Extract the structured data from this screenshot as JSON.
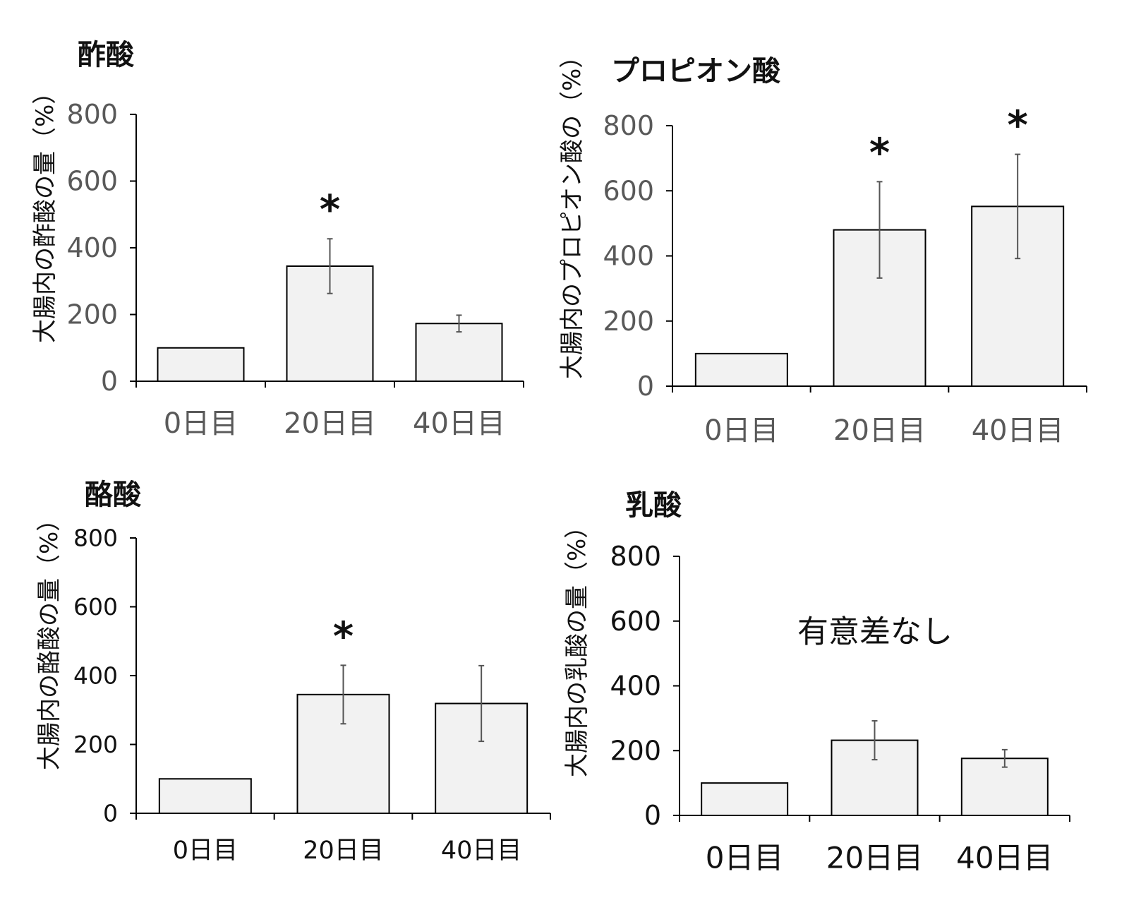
{
  "chart_data": [
    {
      "type": "bar",
      "title": "酢酸",
      "ylabel": "大腸内の酢酸の量（%）",
      "xlabel": "",
      "categories": [
        "0日目",
        "20日目",
        "40日目"
      ],
      "values": [
        100,
        345,
        173
      ],
      "error": [
        0,
        82,
        25
      ],
      "significance": [
        "",
        "*",
        ""
      ],
      "yticks": [
        "0",
        "200",
        "400",
        "600",
        "800"
      ],
      "ylim": [
        0,
        800
      ],
      "note": "",
      "tick_color": "#595959",
      "bar_color": "#f2f2f2"
    },
    {
      "type": "bar",
      "title": "プロピオン酸",
      "ylabel": "大腸内のプロピオン酸の（%）",
      "xlabel": "",
      "categories": [
        "0日目",
        "20日目",
        "40日目"
      ],
      "values": [
        100,
        480,
        552
      ],
      "error": [
        0,
        148,
        160
      ],
      "significance": [
        "",
        "*",
        "*"
      ],
      "yticks": [
        "0",
        "200",
        "400",
        "600",
        "800"
      ],
      "ylim": [
        0,
        800
      ],
      "note": "",
      "tick_color": "#595959",
      "bar_color": "#f2f2f2"
    },
    {
      "type": "bar",
      "title": "酪酸",
      "ylabel": "大腸内の酪酸の量（%）",
      "xlabel": "",
      "categories": [
        "0日目",
        "20日目",
        "40日目"
      ],
      "values": [
        100,
        345,
        319
      ],
      "error": [
        0,
        85,
        110
      ],
      "significance": [
        "",
        "*",
        ""
      ],
      "yticks": [
        "0",
        "200",
        "400",
        "600",
        "800"
      ],
      "ylim": [
        0,
        800
      ],
      "note": "",
      "tick_color": "#111111",
      "bar_color": "#f2f2f2"
    },
    {
      "type": "bar",
      "title": "乳酸",
      "ylabel": "大腸内の乳酸の量（%）",
      "xlabel": "",
      "categories": [
        "0日目",
        "20日目",
        "40日目"
      ],
      "values": [
        100,
        232,
        176
      ],
      "error": [
        0,
        60,
        27
      ],
      "significance": [
        "",
        "",
        ""
      ],
      "yticks": [
        "0",
        "200",
        "400",
        "600",
        "800"
      ],
      "ylim": [
        0,
        800
      ],
      "note": "有意差なし",
      "tick_color": "#111111",
      "bar_color": "#f2f2f2"
    }
  ]
}
